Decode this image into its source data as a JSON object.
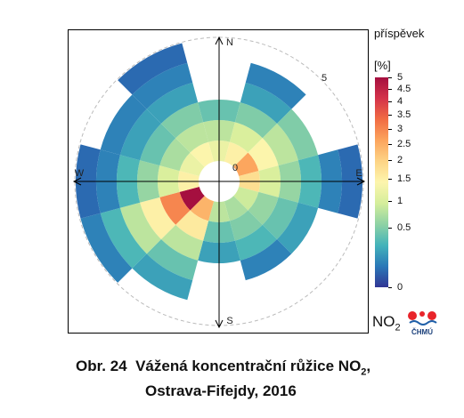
{
  "compass": {
    "north": "N",
    "south": "S",
    "east": "E",
    "west": "W"
  },
  "radial_labels": {
    "inner": "0",
    "outer": "5"
  },
  "legend": {
    "title": "příspěvek",
    "unit": "[%]",
    "ticks": [
      "5",
      "4.5",
      "4",
      "3.5",
      "3",
      "2.5",
      "2",
      "1.5",
      "1",
      "0.5",
      "0"
    ],
    "tick_values": [
      5,
      4.5,
      4,
      3.5,
      3,
      2.5,
      2,
      1.5,
      1,
      0.5,
      0
    ],
    "colors": [
      "#313695",
      "#2a78b8",
      "#43b3ba",
      "#8ed2a4",
      "#d5ee9b",
      "#fdf5ad",
      "#fdd485",
      "#fca55d",
      "#f16c43",
      "#d4324a",
      "#a50f3f"
    ]
  },
  "pollutant": {
    "main": "NO",
    "sub": "2"
  },
  "logo": {
    "text": "ČHMÚ"
  },
  "caption": {
    "number": "Obr. 24",
    "title_main": "Vážená koncentrační růžice NO",
    "title_sub": "2",
    "title_end": ",",
    "line2": "Ostrava-Fifejdy, 2016"
  },
  "chart_data": {
    "type": "heatmap",
    "subtype": "polar weighted concentration rose",
    "value_label": "příspěvek [%]",
    "color_range": [
      0,
      5
    ],
    "sector_width_deg": 30,
    "rings": 6,
    "radial_range": [
      0,
      5
    ],
    "sectors": [
      {
        "dir_deg": 0,
        "contribution": [
          1.2,
          0.8,
          0.4,
          null,
          null,
          null
        ]
      },
      {
        "dir_deg": 30,
        "contribution": [
          1.5,
          1.0,
          0.5,
          0.2,
          0.1,
          null
        ]
      },
      {
        "dir_deg": 60,
        "contribution": [
          2.6,
          1.4,
          0.8,
          0.5,
          null,
          null
        ]
      },
      {
        "dir_deg": 90,
        "contribution": [
          1.8,
          1.0,
          0.6,
          0.3,
          0.1,
          0.05
        ]
      },
      {
        "dir_deg": 120,
        "contribution": [
          0.9,
          0.6,
          0.4,
          0.2,
          null,
          null
        ]
      },
      {
        "dir_deg": 150,
        "contribution": [
          0.7,
          0.5,
          0.3,
          0.1,
          null,
          null
        ]
      },
      {
        "dir_deg": 180,
        "contribution": [
          0.8,
          0.4,
          0.2,
          null,
          null,
          null
        ]
      },
      {
        "dir_deg": 210,
        "contribution": [
          2.4,
          1.6,
          0.8,
          0.4,
          0.2,
          null
        ]
      },
      {
        "dir_deg": 240,
        "contribution": [
          5.0,
          3.0,
          1.5,
          0.8,
          0.3,
          0.1
        ]
      },
      {
        "dir_deg": 270,
        "contribution": [
          1.5,
          1.0,
          0.6,
          0.3,
          0.1,
          0.05
        ]
      },
      {
        "dir_deg": 300,
        "contribution": [
          1.2,
          0.7,
          0.4,
          0.2,
          0.1,
          null
        ]
      },
      {
        "dir_deg": 330,
        "contribution": [
          1.4,
          0.8,
          0.5,
          0.2,
          0.1,
          0.05
        ]
      }
    ]
  }
}
